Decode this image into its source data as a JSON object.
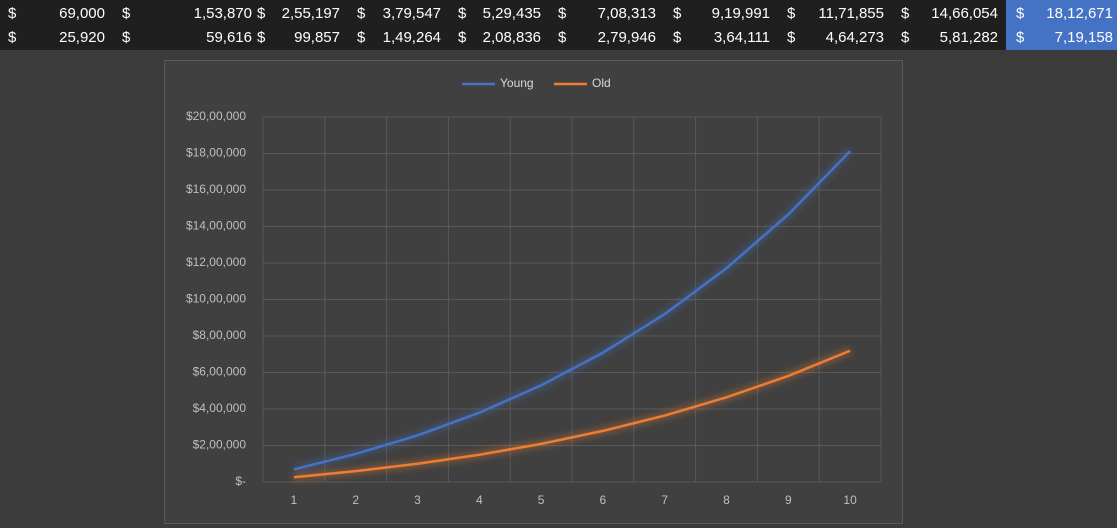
{
  "table": {
    "rows": [
      [
        {
          "currency": "$",
          "amount": "69,000"
        },
        {
          "currency": "$",
          "amount": "1,53,870"
        },
        {
          "currency": "$",
          "amount": "2,55,197"
        },
        {
          "currency": "$",
          "amount": "3,79,547"
        },
        {
          "currency": "$",
          "amount": "5,29,435"
        },
        {
          "currency": "$",
          "amount": "7,08,313"
        },
        {
          "currency": "$",
          "amount": "9,19,991"
        },
        {
          "currency": "$",
          "amount": "11,71,855"
        },
        {
          "currency": "$",
          "amount": "14,66,054"
        },
        {
          "currency": "$",
          "amount": "18,12,671"
        }
      ],
      [
        {
          "currency": "$",
          "amount": "25,920"
        },
        {
          "currency": "$",
          "amount": "59,616"
        },
        {
          "currency": "$",
          "amount": "99,857"
        },
        {
          "currency": "$",
          "amount": "1,49,264"
        },
        {
          "currency": "$",
          "amount": "2,08,836"
        },
        {
          "currency": "$",
          "amount": "2,79,946"
        },
        {
          "currency": "$",
          "amount": "3,64,111"
        },
        {
          "currency": "$",
          "amount": "4,64,273"
        },
        {
          "currency": "$",
          "amount": "5,81,282"
        },
        {
          "currency": "$",
          "amount": "7,19,158"
        }
      ]
    ]
  },
  "chart_data": {
    "type": "line",
    "categories": [
      "1",
      "2",
      "3",
      "4",
      "5",
      "6",
      "7",
      "8",
      "9",
      "10"
    ],
    "series": [
      {
        "name": "Young",
        "color": "#4472c4",
        "values": [
          69000,
          153870,
          255197,
          379547,
          529435,
          708313,
          919991,
          1171855,
          1466054,
          1812671
        ]
      },
      {
        "name": "Old",
        "color": "#ed7d31",
        "values": [
          25920,
          59616,
          99857,
          149264,
          208836,
          279946,
          364111,
          464273,
          581282,
          719158
        ]
      }
    ],
    "ylim": [
      0,
      2000000
    ],
    "yticks": [
      {
        "value": 0,
        "label": "$-"
      },
      {
        "value": 200000,
        "label": "$2,00,000"
      },
      {
        "value": 400000,
        "label": "$4,00,000"
      },
      {
        "value": 600000,
        "label": "$6,00,000"
      },
      {
        "value": 800000,
        "label": "$8,00,000"
      },
      {
        "value": 1000000,
        "label": "$10,00,000"
      },
      {
        "value": 1200000,
        "label": "$12,00,000"
      },
      {
        "value": 1400000,
        "label": "$14,00,000"
      },
      {
        "value": 1600000,
        "label": "$16,00,000"
      },
      {
        "value": 1800000,
        "label": "$18,00,000"
      },
      {
        "value": 2000000,
        "label": "$20,00,000"
      }
    ],
    "grid": true,
    "legend": "top"
  }
}
